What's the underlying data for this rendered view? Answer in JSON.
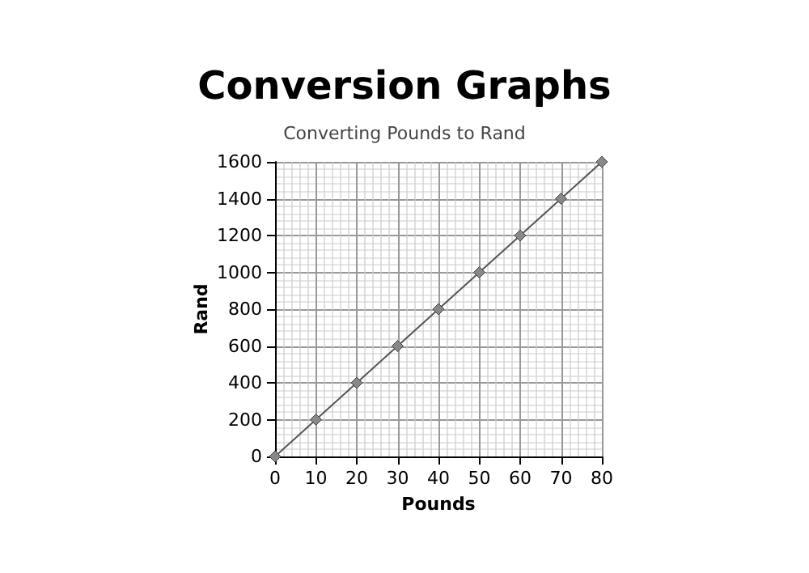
{
  "chart_data": {
    "type": "line",
    "title": "Conversion Graphs",
    "subtitle": "Converting Pounds to Rand",
    "xlabel": "Pounds",
    "ylabel": "Rand",
    "x": [
      0,
      10,
      20,
      30,
      40,
      50,
      60,
      70,
      80
    ],
    "series": [
      {
        "color": "#555555",
        "values": [
          0,
          200,
          400,
          600,
          800,
          1000,
          1200,
          1400,
          1600
        ]
      }
    ],
    "xlim": [
      0,
      80
    ],
    "xticks": [
      0,
      10,
      20,
      30,
      40,
      50,
      60,
      70,
      80
    ],
    "ylim": [
      0,
      1600
    ],
    "yticks": [
      0,
      200,
      400,
      600,
      800,
      1000,
      1200,
      1400,
      1600
    ],
    "grid": true,
    "marker": "diamond",
    "line_style": "solid"
  }
}
